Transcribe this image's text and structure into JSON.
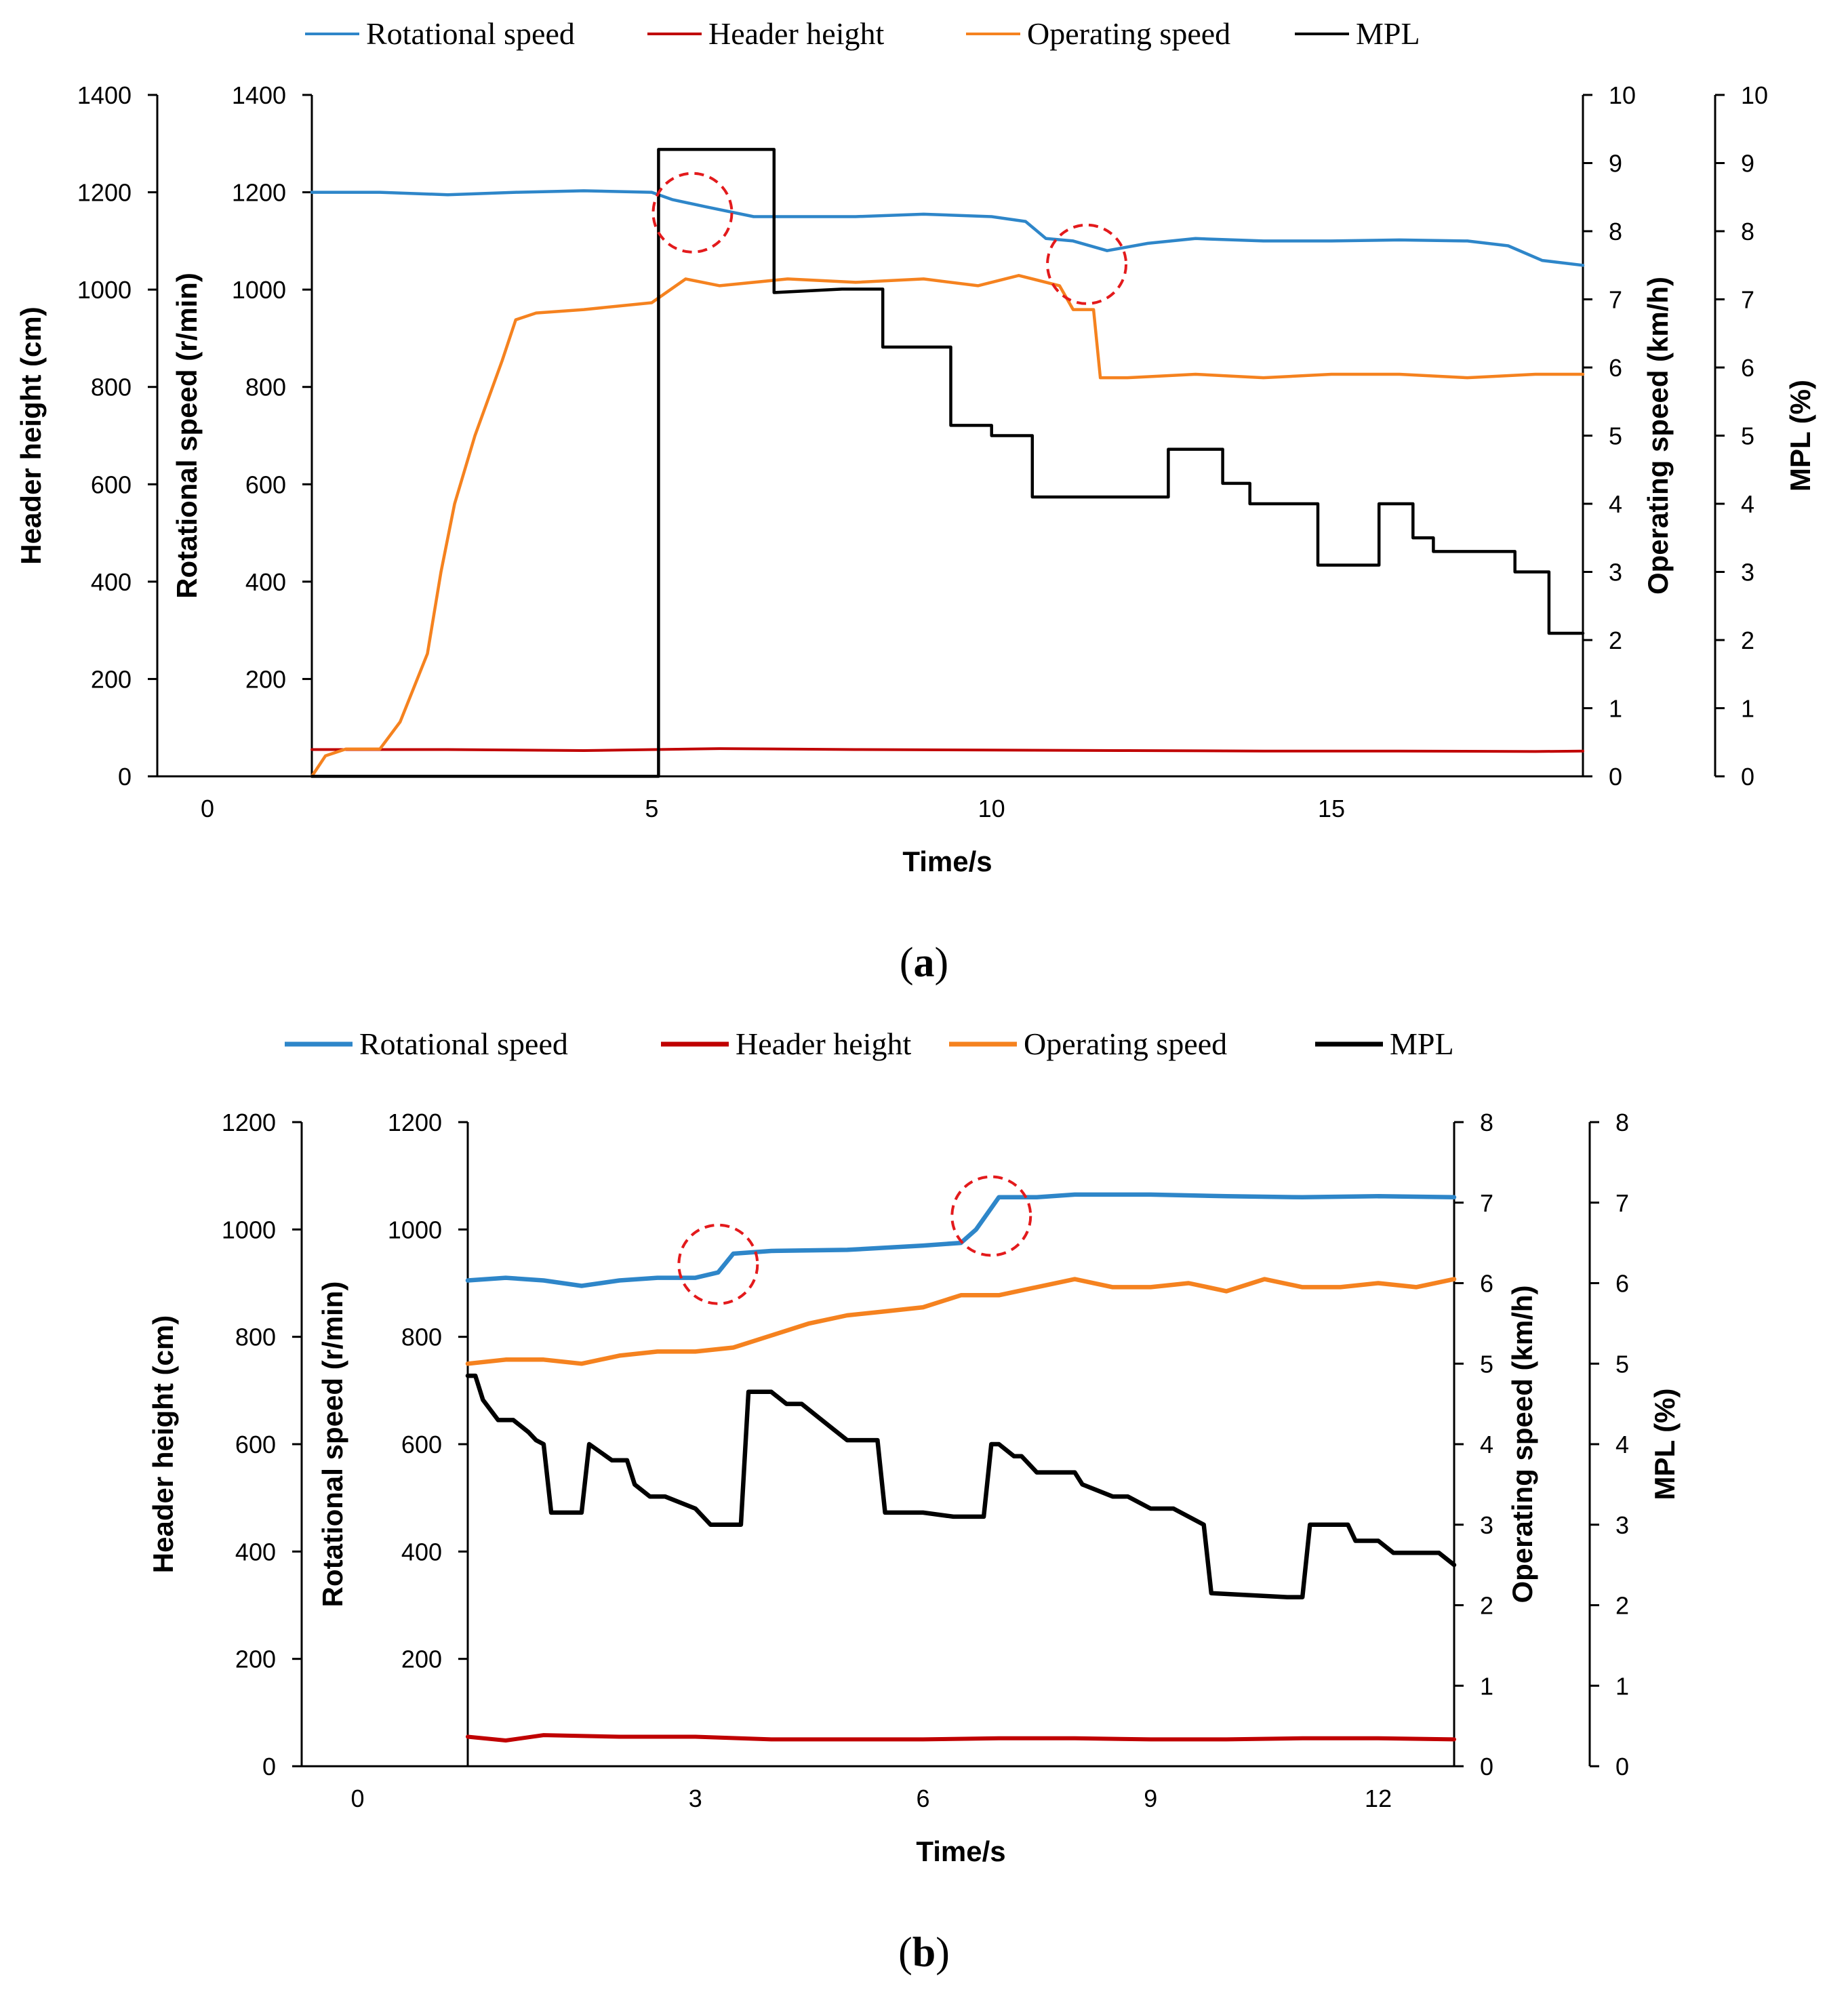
{
  "chart_data": [
    {
      "type": "line",
      "caption_letter": "a",
      "legend_position": "top-center",
      "grid": false,
      "xlabel": "Time/s",
      "x_range": [
        0,
        18.7
      ],
      "x_ticks": [
        0,
        5,
        10,
        15
      ],
      "axes": {
        "header_height": {
          "label": "Header height (cm)",
          "range": [
            0,
            1400
          ],
          "ticks": [
            0,
            200,
            400,
            600,
            800,
            1000,
            1200,
            1400
          ]
        },
        "rotational_speed": {
          "label": "Rotational speed (r/min)",
          "range": [
            0,
            1400
          ],
          "ticks": [
            200,
            400,
            600,
            800,
            1000,
            1200,
            1400
          ]
        },
        "operating_speed": {
          "label": "Operating speed (km/h)",
          "range": [
            0,
            10
          ],
          "ticks": [
            0,
            1,
            2,
            3,
            4,
            5,
            6,
            7,
            8,
            9,
            10
          ]
        },
        "mpl": {
          "label": "MPL (%)",
          "range": [
            0,
            10
          ],
          "ticks": [
            0,
            1,
            2,
            3,
            4,
            5,
            6,
            7,
            8,
            9,
            10
          ]
        }
      },
      "series": [
        {
          "name": "Rotational speed",
          "color": "#2e86c9",
          "axis": "rotational_speed",
          "x": [
            0,
            1,
            2,
            3,
            4,
            5,
            5.3,
            5.8,
            6.5,
            8,
            9,
            10,
            10.5,
            10.8,
            11.2,
            11.7,
            12.3,
            13,
            14,
            15,
            16,
            17,
            17.6,
            18.1,
            18.7
          ],
          "y": [
            1200,
            1200,
            1195,
            1200,
            1203,
            1200,
            1185,
            1170,
            1150,
            1150,
            1155,
            1150,
            1140,
            1105,
            1100,
            1080,
            1095,
            1105,
            1100,
            1100,
            1102,
            1100,
            1090,
            1060,
            1050
          ]
        },
        {
          "name": "Header height",
          "color": "#c00000",
          "axis": "header_height",
          "x": [
            0,
            2,
            4,
            6,
            8,
            10,
            12,
            14,
            16,
            18,
            18.7
          ],
          "y": [
            55,
            55,
            53,
            57,
            55,
            54,
            53,
            52,
            52,
            51,
            52
          ]
        },
        {
          "name": "Operating speed",
          "color": "#f5821f",
          "axis": "operating_speed",
          "x": [
            0,
            0.2,
            0.5,
            1.0,
            1.3,
            1.7,
            1.9,
            2.1,
            2.4,
            2.8,
            3.0,
            3.3,
            4.0,
            5.0,
            5.5,
            6.0,
            7.0,
            8.0,
            9.0,
            9.8,
            10.4,
            11.0,
            11.2,
            11.5,
            11.6,
            12,
            13,
            14,
            15,
            16,
            17,
            18,
            18.7
          ],
          "y": [
            0,
            0.3,
            0.4,
            0.4,
            0.8,
            1.8,
            3.0,
            4.0,
            5.0,
            6.1,
            6.7,
            6.8,
            6.85,
            6.95,
            7.3,
            7.2,
            7.3,
            7.25,
            7.3,
            7.2,
            7.35,
            7.2,
            6.85,
            6.85,
            5.85,
            5.85,
            5.9,
            5.85,
            5.9,
            5.9,
            5.85,
            5.9,
            5.9
          ]
        },
        {
          "name": "MPL",
          "color": "#000000",
          "axis": "mpl",
          "step": true,
          "x": [
            0,
            5.1,
            5.1,
            6.8,
            6.8,
            7.8,
            8.4,
            8.4,
            9.4,
            9.4,
            10.0,
            10.0,
            10.6,
            10.6,
            12.6,
            12.6,
            13.4,
            13.4,
            13.8,
            13.8,
            14.8,
            14.8,
            15.7,
            15.7,
            16.2,
            16.2,
            16.5,
            16.5,
            16.9,
            16.9,
            17.7,
            17.7,
            18.2,
            18.2,
            18.7
          ],
          "y": [
            0,
            0,
            9.2,
            9.2,
            7.1,
            7.15,
            7.15,
            6.3,
            6.3,
            5.15,
            5.15,
            5.0,
            5.0,
            4.1,
            4.1,
            4.8,
            4.8,
            4.3,
            4.3,
            4.0,
            4.0,
            3.1,
            3.1,
            4.0,
            4.0,
            3.5,
            3.5,
            3.3,
            3.3,
            3.3,
            3.3,
            3.0,
            3.0,
            2.1,
            2.1
          ]
        }
      ],
      "annotations": [
        {
          "shape": "dashed-circle",
          "color": "#e31a1c",
          "x": 5.6,
          "axis": "rotational_speed",
          "y": 1158
        },
        {
          "shape": "dashed-circle",
          "color": "#e31a1c",
          "x": 11.4,
          "axis": "rotational_speed",
          "y": 1052
        }
      ]
    },
    {
      "type": "line",
      "caption_letter": "b",
      "legend_position": "top-center",
      "grid": false,
      "xlabel": "Time/s",
      "x_range": [
        0,
        13
      ],
      "x_ticks": [
        0,
        3,
        6,
        9,
        12
      ],
      "axes": {
        "header_height": {
          "label": "Header height (cm)",
          "range": [
            0,
            1200
          ],
          "ticks": [
            0,
            200,
            400,
            600,
            800,
            1000,
            1200
          ]
        },
        "rotational_speed": {
          "label": "Rotational speed (r/min)",
          "range": [
            0,
            1200
          ],
          "ticks": [
            200,
            400,
            600,
            800,
            1000,
            1200
          ]
        },
        "operating_speed": {
          "label": "Operating speed (km/h)",
          "range": [
            0,
            8
          ],
          "ticks": [
            0,
            1,
            2,
            3,
            4,
            5,
            6,
            7,
            8
          ]
        },
        "mpl": {
          "label": "MPL (%)",
          "range": [
            0,
            8
          ],
          "ticks": [
            0,
            1,
            2,
            3,
            4,
            5,
            6,
            7,
            8
          ]
        }
      },
      "series": [
        {
          "name": "Rotational speed",
          "color": "#2e86c9",
          "axis": "rotational_speed",
          "x": [
            0,
            0.5,
            1,
            1.5,
            2,
            2.5,
            3,
            3.3,
            3.5,
            4,
            5,
            6,
            6.5,
            6.7,
            7,
            7.5,
            8,
            9,
            10,
            11,
            12,
            13
          ],
          "y": [
            905,
            910,
            905,
            895,
            905,
            910,
            910,
            920,
            955,
            960,
            962,
            970,
            975,
            1000,
            1060,
            1060,
            1065,
            1065,
            1062,
            1060,
            1062,
            1060
          ]
        },
        {
          "name": "Header height",
          "color": "#c00000",
          "axis": "header_height",
          "x": [
            0,
            0.5,
            1,
            2,
            3,
            4,
            5,
            6,
            7,
            8,
            9,
            10,
            11,
            12,
            13
          ],
          "y": [
            55,
            48,
            58,
            55,
            55,
            50,
            50,
            50,
            52,
            52,
            50,
            50,
            52,
            52,
            50
          ]
        },
        {
          "name": "Operating speed",
          "color": "#f5821f",
          "axis": "operating_speed",
          "x": [
            0,
            0.5,
            1,
            1.5,
            2,
            2.5,
            3,
            3.5,
            4,
            4.5,
            5,
            5.5,
            6,
            6.5,
            7,
            7.5,
            8,
            8.5,
            9,
            9.5,
            10,
            10.5,
            11,
            11.5,
            12,
            12.5,
            13
          ],
          "y": [
            5.0,
            5.05,
            5.05,
            5.0,
            5.1,
            5.15,
            5.15,
            5.2,
            5.35,
            5.5,
            5.6,
            5.65,
            5.7,
            5.85,
            5.85,
            5.95,
            6.05,
            5.95,
            5.95,
            6.0,
            5.9,
            6.05,
            5.95,
            5.95,
            6.0,
            5.95,
            6.05
          ]
        },
        {
          "name": "MPL",
          "color": "#000000",
          "axis": "mpl",
          "step": true,
          "x": [
            0,
            0.1,
            0.2,
            0.4,
            0.6,
            0.8,
            0.9,
            1.0,
            1.1,
            1.5,
            1.6,
            1.9,
            2.1,
            2.2,
            2.4,
            2.6,
            3.0,
            3.2,
            3.6,
            3.7,
            4.0,
            4.2,
            4.4,
            4.6,
            4.8,
            5.0,
            5.4,
            5.5,
            6.0,
            6.4,
            6.8,
            6.9,
            7.0,
            7.2,
            7.3,
            7.5,
            8.0,
            8.1,
            8.5,
            8.7,
            9.0,
            9.3,
            9.7,
            9.8,
            10.8,
            11.0,
            11.1,
            11.6,
            11.7,
            12.0,
            12.2,
            12.8,
            13.0
          ],
          "y": [
            4.85,
            4.85,
            4.55,
            4.3,
            4.3,
            4.15,
            4.05,
            4.0,
            3.15,
            3.15,
            4.0,
            3.8,
            3.8,
            3.5,
            3.35,
            3.35,
            3.2,
            3.0,
            3.0,
            4.65,
            4.65,
            4.5,
            4.5,
            4.35,
            4.2,
            4.05,
            4.05,
            3.15,
            3.15,
            3.1,
            3.1,
            4.0,
            4.0,
            3.85,
            3.85,
            3.65,
            3.65,
            3.5,
            3.35,
            3.35,
            3.2,
            3.2,
            3.0,
            2.15,
            2.1,
            2.1,
            3.0,
            3.0,
            2.8,
            2.8,
            2.65,
            2.65,
            2.5
          ]
        }
      ],
      "annotations": [
        {
          "shape": "dashed-circle",
          "color": "#e31a1c",
          "x": 3.3,
          "axis": "rotational_speed",
          "y": 935
        },
        {
          "shape": "dashed-circle",
          "color": "#e31a1c",
          "x": 6.9,
          "axis": "rotational_speed",
          "y": 1025
        }
      ]
    }
  ],
  "legend_labels": {
    "rotational_speed": "Rotational speed",
    "header_height": "Header height",
    "operating_speed": "Operating speed",
    "mpl": "MPL"
  }
}
